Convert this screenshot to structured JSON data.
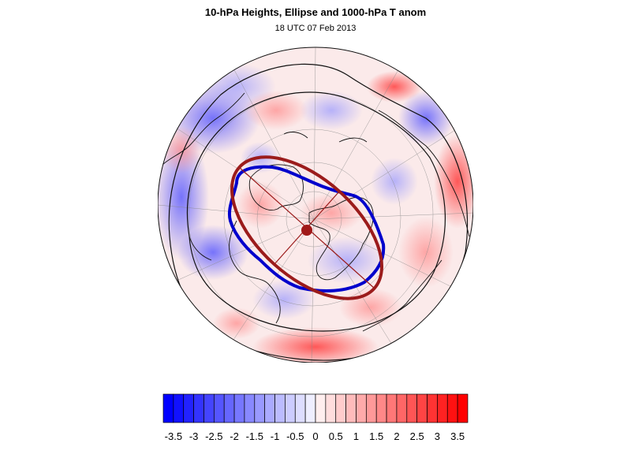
{
  "title": "10-hPa Heights, Ellipse and 1000-hPa T anom",
  "subtitle": "18 UTC 07 Feb 2013",
  "colors": {
    "strong_negative": "#0000ff",
    "strong_positive": "#ff0000",
    "polar_vortex_contour": "#0000cc",
    "ellipse": "#9b1b1b",
    "ellipse_center": "#a01818"
  },
  "map": {
    "projection": "polar-stereographic-north",
    "features": [
      "temperature-anomaly-shading",
      "coastlines",
      "lat-lon-grid",
      "10hpa-height-contours",
      "vortex-ellipse",
      "ellipse-axes",
      "ellipse-center"
    ]
  },
  "colorbar": {
    "ticks": [
      "-3.5",
      "-3",
      "-2.5",
      "-2",
      "-1.5",
      "-1",
      "-0.5",
      "0",
      "0.5",
      "1",
      "1.5",
      "2",
      "2.5",
      "3",
      "3.5"
    ],
    "min": -3.75,
    "max": 3.75,
    "step": 0.25
  }
}
